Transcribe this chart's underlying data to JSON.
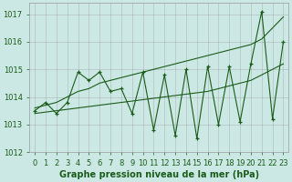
{
  "xlabel": "Graphe pression niveau de la mer (hPa)",
  "bg_color": "#cce8e4",
  "line_color": "#1a5c1a",
  "x_values": [
    0,
    1,
    2,
    3,
    4,
    5,
    6,
    7,
    8,
    9,
    10,
    11,
    12,
    13,
    14,
    15,
    16,
    17,
    18,
    19,
    20,
    21,
    22,
    23
  ],
  "y_main": [
    1013.5,
    1013.8,
    1013.4,
    1013.8,
    1014.9,
    1014.6,
    1014.9,
    1014.2,
    1014.3,
    1013.4,
    1014.9,
    1012.8,
    1014.8,
    1012.6,
    1015.0,
    1012.5,
    1015.1,
    1013.0,
    1015.1,
    1013.1,
    1015.2,
    1017.1,
    1013.2,
    1016.0
  ],
  "y_upper": [
    1013.6,
    1013.7,
    1013.8,
    1014.0,
    1014.2,
    1014.3,
    1014.5,
    1014.6,
    1014.7,
    1014.8,
    1014.9,
    1015.0,
    1015.1,
    1015.2,
    1015.3,
    1015.4,
    1015.5,
    1015.6,
    1015.7,
    1015.8,
    1015.9,
    1016.1,
    1016.5,
    1016.9
  ],
  "y_lower": [
    1013.4,
    1013.45,
    1013.5,
    1013.55,
    1013.6,
    1013.65,
    1013.7,
    1013.75,
    1013.8,
    1013.85,
    1013.9,
    1013.95,
    1014.0,
    1014.05,
    1014.1,
    1014.15,
    1014.2,
    1014.3,
    1014.4,
    1014.5,
    1014.6,
    1014.8,
    1015.0,
    1015.2
  ],
  "ylim": [
    1012.0,
    1017.4
  ],
  "yticks": [
    1012,
    1013,
    1014,
    1015,
    1016,
    1017
  ],
  "label_fontsize": 7,
  "tick_fontsize": 6
}
